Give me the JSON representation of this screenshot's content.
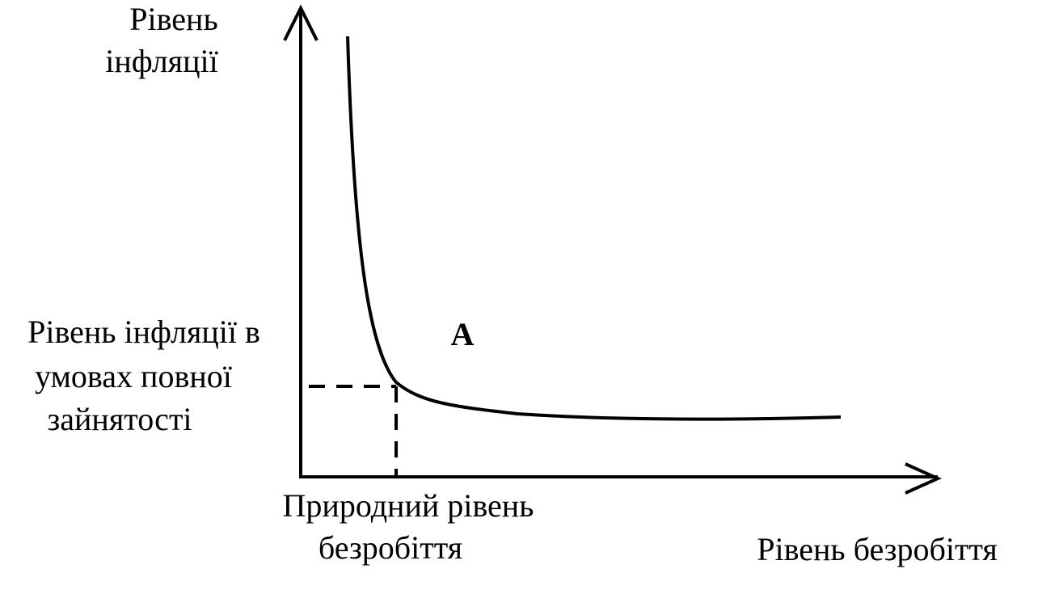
{
  "y_axis_label": [
    "Рівень",
    "інфляції"
  ],
  "full_employment_label": [
    "Рівень інфляції в",
    "умовах повної",
    "зайнятості"
  ],
  "point_label": "A",
  "natural_rate_label": [
    "Природний рівень",
    "безробіття"
  ],
  "x_axis_label": "Рівень безробіття"
}
